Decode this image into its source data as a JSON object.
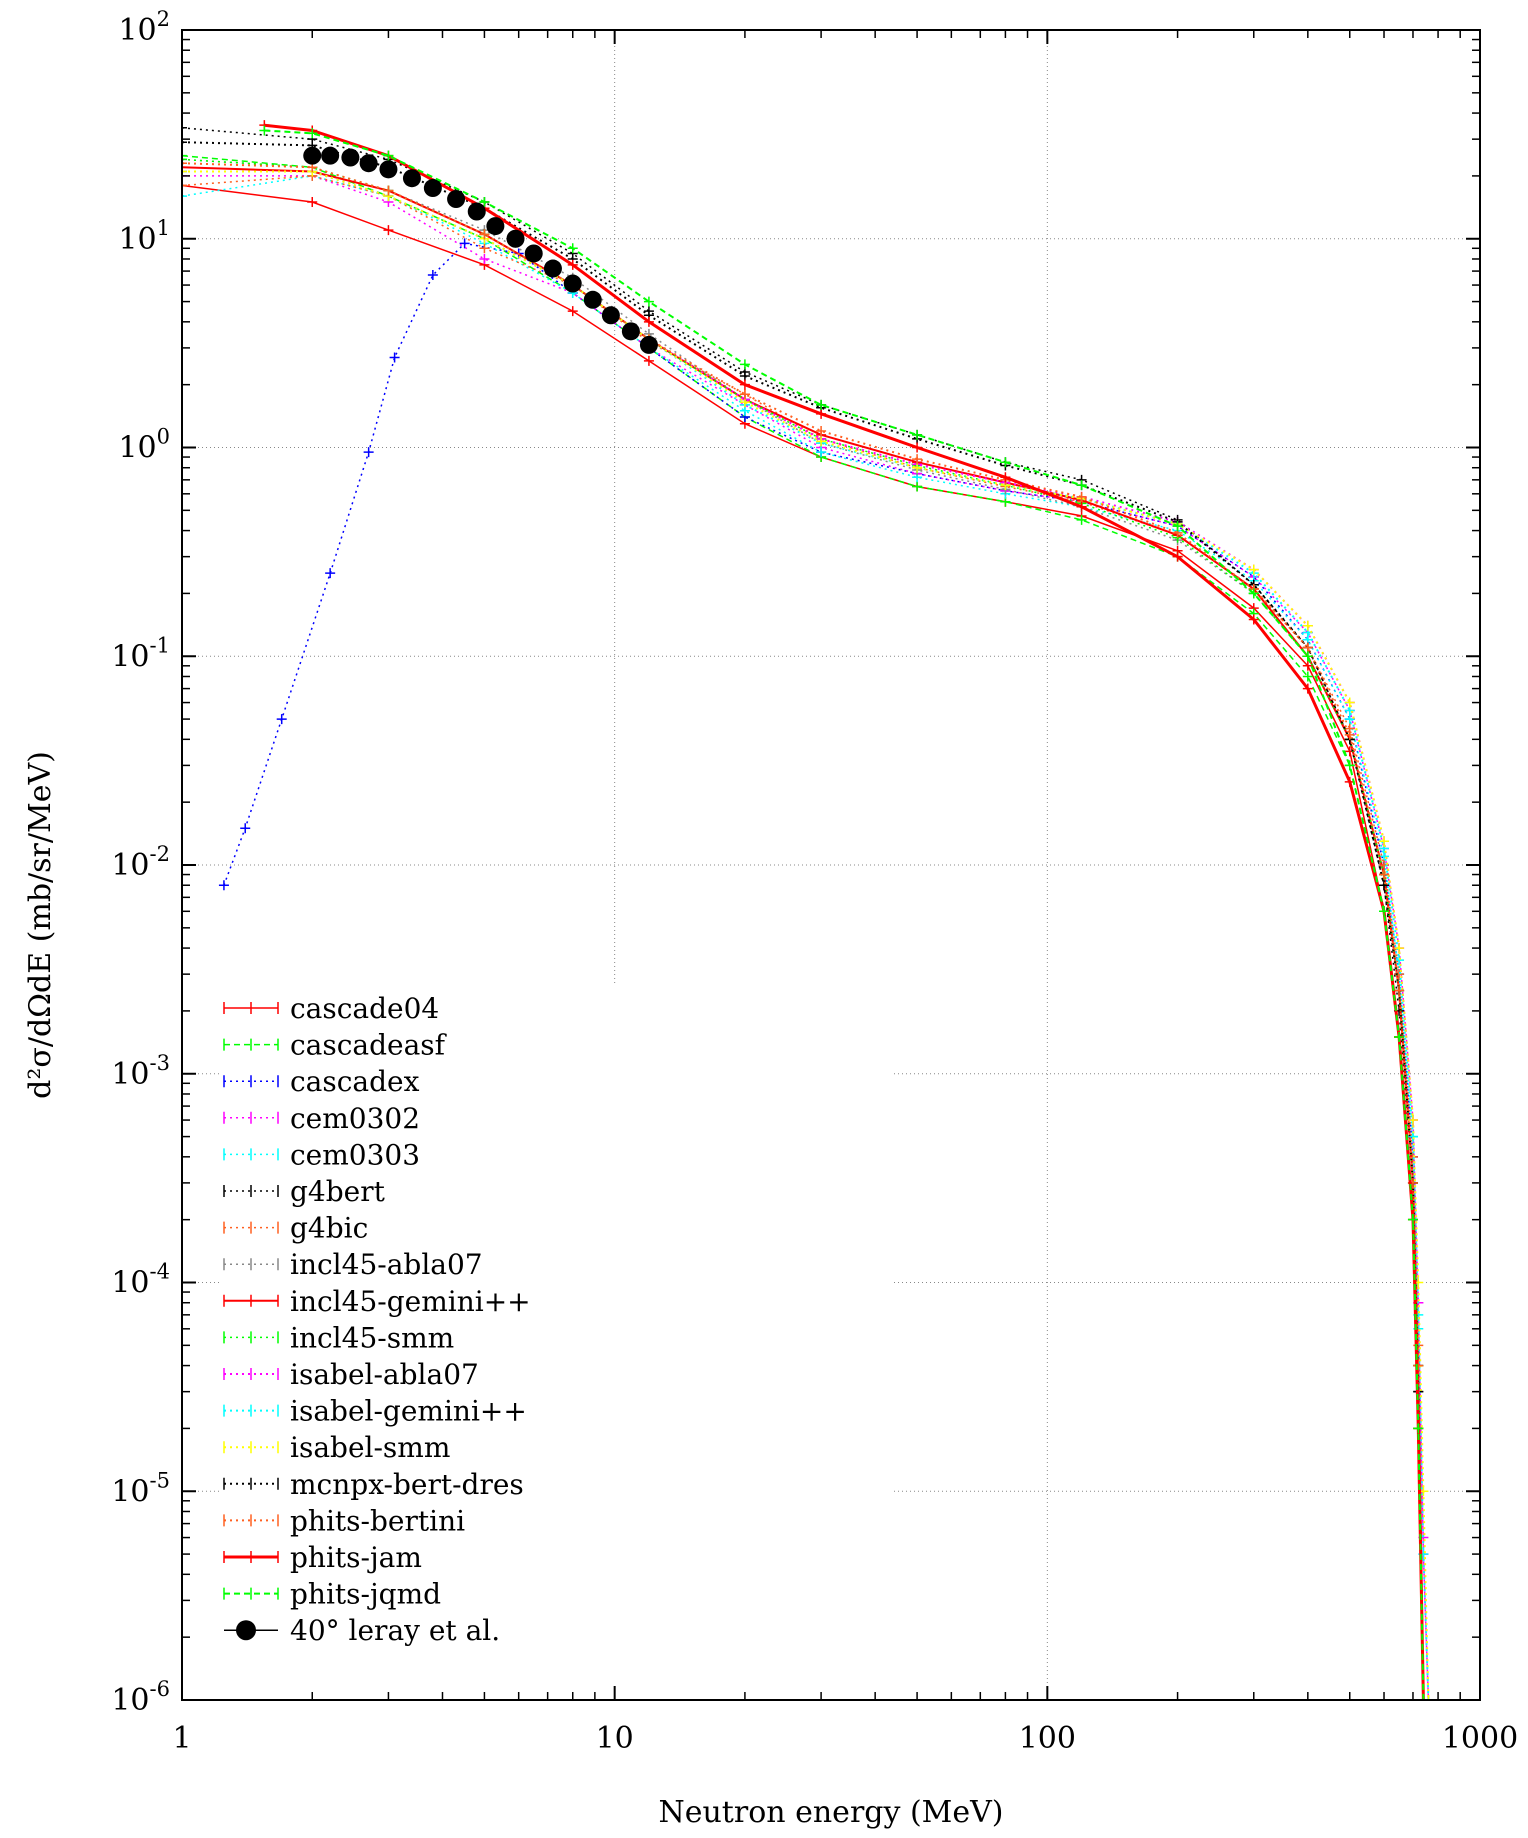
{
  "chart_data": {
    "type": "line",
    "title": "",
    "xlabel": "Neutron energy (MeV)",
    "ylabel": "d²σ/dΩdE (mb/sr/MeV)",
    "x_scale": "log",
    "y_scale": "log",
    "xlim": [
      1,
      1000
    ],
    "ylim": [
      1e-06,
      100
    ],
    "grid": true,
    "legend_position": "bottom-left",
    "x_ticks": [
      {
        "value": 1,
        "label": "1"
      },
      {
        "value": 10,
        "label": "10"
      },
      {
        "value": 100,
        "label": "100"
      },
      {
        "value": 1000,
        "label": "1000"
      }
    ],
    "y_ticks": [
      {
        "value": 1e-06,
        "mant": "10",
        "exp": "-6"
      },
      {
        "value": 1e-05,
        "mant": "10",
        "exp": "-5"
      },
      {
        "value": 0.0001,
        "mant": "10",
        "exp": "-4"
      },
      {
        "value": 0.001,
        "mant": "10",
        "exp": "-3"
      },
      {
        "value": 0.01,
        "mant": "10",
        "exp": "-2"
      },
      {
        "value": 0.1,
        "mant": "10",
        "exp": "-1"
      },
      {
        "value": 1,
        "mant": "10",
        "exp": "0"
      },
      {
        "value": 10,
        "mant": "10",
        "exp": "1"
      },
      {
        "value": 100,
        "mant": "10",
        "exp": "2"
      }
    ],
    "series": [
      {
        "name": "cascade04",
        "color": "#ff0000",
        "dash": "",
        "marker": "cross",
        "x": [
          1,
          2,
          3,
          5,
          8,
          12,
          20,
          30,
          50,
          80,
          120,
          200,
          300,
          400,
          500,
          600,
          650,
          700,
          720,
          740
        ],
        "y": [
          18,
          15,
          11,
          7.5,
          4.5,
          2.6,
          1.3,
          0.9,
          0.65,
          0.55,
          0.47,
          0.32,
          0.17,
          0.09,
          0.035,
          0.006,
          0.0015,
          0.0002,
          2e-05,
          1e-06
        ]
      },
      {
        "name": "cascadeasf",
        "color": "#00ff00",
        "dash": "6,4",
        "marker": "cross",
        "x": [
          1,
          2,
          3,
          5,
          8,
          12,
          20,
          30,
          50,
          80,
          120,
          200,
          300,
          400,
          500,
          600,
          650,
          700,
          720,
          740
        ],
        "y": [
          25,
          22,
          16,
          10,
          5.5,
          3,
          1.4,
          0.9,
          0.65,
          0.55,
          0.45,
          0.3,
          0.16,
          0.08,
          0.03,
          0.006,
          0.0015,
          0.0002,
          2e-05,
          1e-06
        ]
      },
      {
        "name": "cascadex",
        "color": "#0000ff",
        "dash": "2,4",
        "marker": "cross",
        "x": [
          1.25,
          1.4,
          1.7,
          2.2,
          2.7,
          3.1,
          3.8,
          4.5,
          6,
          8,
          12,
          20,
          30,
          50,
          80,
          120,
          200,
          300,
          400,
          500,
          600,
          650,
          700,
          720,
          740
        ],
        "y": [
          0.008,
          0.015,
          0.05,
          0.25,
          0.95,
          2.7,
          6.7,
          9.5,
          8.5,
          5.5,
          3,
          1.4,
          0.95,
          0.75,
          0.62,
          0.55,
          0.42,
          0.24,
          0.12,
          0.05,
          0.01,
          0.003,
          0.0004,
          4e-05,
          1e-06
        ]
      },
      {
        "name": "cem0302",
        "color": "#ff00ff",
        "dash": "2,4",
        "marker": "cross",
        "x": [
          1,
          2,
          3,
          5,
          8,
          12,
          20,
          30,
          50,
          80,
          120,
          200,
          300,
          400,
          500,
          600,
          650,
          700,
          720,
          740,
          760
        ],
        "y": [
          20,
          20,
          15,
          8,
          5.5,
          3,
          1.6,
          1,
          0.75,
          0.62,
          0.55,
          0.42,
          0.24,
          0.13,
          0.055,
          0.012,
          0.004,
          0.0006,
          8e-05,
          5e-06,
          1e-06
        ]
      },
      {
        "name": "cem0303",
        "color": "#00ffff",
        "dash": "2,4",
        "marker": "cross",
        "x": [
          1,
          2,
          3,
          5,
          8,
          12,
          20,
          30,
          50,
          80,
          120,
          200,
          300,
          400,
          500,
          600,
          650,
          700,
          720,
          740
        ],
        "y": [
          16,
          20,
          16,
          9.5,
          5.5,
          3,
          1.5,
          0.95,
          0.72,
          0.6,
          0.52,
          0.4,
          0.23,
          0.12,
          0.05,
          0.011,
          0.003,
          0.0005,
          6e-05,
          1e-06
        ]
      },
      {
        "name": "g4bert",
        "color": "#000000",
        "dash": "2,4",
        "marker": "cross",
        "x": [
          1,
          2,
          3,
          5,
          8,
          12,
          20,
          30,
          50,
          80,
          120,
          200,
          300,
          400,
          500,
          600,
          650,
          700,
          720,
          740
        ],
        "y": [
          34,
          30,
          24,
          15,
          8.5,
          4.5,
          2.3,
          1.6,
          1.15,
          0.85,
          0.7,
          0.45,
          0.22,
          0.11,
          0.04,
          0.008,
          0.002,
          0.0003,
          3e-05,
          1e-06
        ]
      },
      {
        "name": "g4bic",
        "color": "#ff6020",
        "dash": "2,4",
        "marker": "cross",
        "x": [
          1,
          2,
          3,
          5,
          8,
          12,
          20,
          30,
          50,
          80,
          120,
          200,
          300,
          400,
          500,
          600,
          650,
          700,
          720,
          740
        ],
        "y": [
          18,
          20,
          16,
          9,
          6,
          3.2,
          1.8,
          1.1,
          0.8,
          0.65,
          0.55,
          0.38,
          0.21,
          0.11,
          0.045,
          0.01,
          0.003,
          0.0004,
          5e-05,
          1e-06
        ]
      },
      {
        "name": "incl45-abla07",
        "color": "#888888",
        "dash": "2,4",
        "marker": "cross",
        "x": [
          1,
          2,
          3,
          5,
          8,
          12,
          20,
          30,
          50,
          80,
          120,
          200,
          300,
          400,
          500,
          600,
          650,
          700,
          720,
          740
        ],
        "y": [
          24,
          22,
          17,
          11,
          6.5,
          3.5,
          1.7,
          1.05,
          0.78,
          0.63,
          0.52,
          0.36,
          0.2,
          0.1,
          0.04,
          0.009,
          0.0025,
          0.0003,
          4e-05,
          1e-06
        ]
      },
      {
        "name": "incl45-gemini++",
        "color": "#ff0000",
        "dash": "",
        "marker": "cross",
        "width": 2,
        "x": [
          1,
          2,
          3,
          5,
          8,
          12,
          20,
          30,
          50,
          80,
          120,
          200,
          300,
          400,
          500,
          600,
          650,
          700,
          720,
          740
        ],
        "y": [
          22,
          21,
          17,
          10.5,
          6,
          3.3,
          1.7,
          1.15,
          0.85,
          0.68,
          0.56,
          0.38,
          0.21,
          0.1,
          0.04,
          0.009,
          0.0025,
          0.0003,
          4e-05,
          1e-06
        ]
      },
      {
        "name": "incl45-smm",
        "color": "#00ff00",
        "dash": "2,4",
        "marker": "cross",
        "x": [
          1,
          2,
          3,
          5,
          8,
          12,
          20,
          30,
          50,
          80,
          120,
          200,
          300,
          400,
          500,
          600,
          650,
          700,
          720,
          740
        ],
        "y": [
          24,
          22,
          17,
          10.5,
          6,
          3.3,
          1.7,
          1.1,
          0.82,
          0.66,
          0.54,
          0.37,
          0.2,
          0.1,
          0.04,
          0.009,
          0.0025,
          0.0003,
          4e-05,
          1e-06
        ]
      },
      {
        "name": "isabel-abla07",
        "color": "#ff00ff",
        "dash": "2,4",
        "marker": "cross",
        "width": 2,
        "x": [
          1,
          2,
          3,
          5,
          8,
          12,
          20,
          30,
          50,
          80,
          120,
          200,
          300,
          400,
          500,
          600,
          650,
          700,
          720,
          740,
          760
        ],
        "y": [
          21,
          21,
          16,
          10,
          6,
          3.3,
          1.7,
          1.1,
          0.83,
          0.68,
          0.58,
          0.44,
          0.26,
          0.14,
          0.06,
          0.013,
          0.004,
          0.0006,
          8e-05,
          6e-06,
          1e-06
        ]
      },
      {
        "name": "isabel-gemini++",
        "color": "#00ffff",
        "dash": "2,4",
        "marker": "cross",
        "width": 2,
        "x": [
          1,
          2,
          3,
          5,
          8,
          12,
          20,
          30,
          50,
          80,
          120,
          200,
          300,
          400,
          500,
          600,
          650,
          700,
          720,
          740,
          760
        ],
        "y": [
          21,
          21,
          16,
          10,
          6,
          3.3,
          1.6,
          1.05,
          0.8,
          0.66,
          0.57,
          0.43,
          0.25,
          0.13,
          0.055,
          0.012,
          0.0035,
          0.0005,
          7e-05,
          5e-06,
          1e-06
        ]
      },
      {
        "name": "isabel-smm",
        "color": "#ffff00",
        "dash": "2,4",
        "marker": "cross",
        "width": 2,
        "x": [
          1,
          2,
          3,
          5,
          8,
          12,
          20,
          30,
          50,
          80,
          120,
          200,
          300,
          400,
          500,
          600,
          650,
          700,
          720,
          740,
          760
        ],
        "y": [
          21,
          21,
          16,
          10,
          6,
          3.3,
          1.65,
          1.07,
          0.8,
          0.66,
          0.57,
          0.43,
          0.26,
          0.14,
          0.06,
          0.013,
          0.004,
          0.0006,
          0.0001,
          1e-05,
          1e-06
        ]
      },
      {
        "name": "mcnpx-bert-dres",
        "color": "#000000",
        "dash": "2,4",
        "marker": "cross",
        "width": 2,
        "x": [
          1,
          2,
          3,
          5,
          8,
          12,
          20,
          30,
          50,
          80,
          120,
          200,
          300,
          400,
          500,
          600,
          650,
          700,
          720,
          740
        ],
        "y": [
          29,
          28,
          22,
          14,
          8,
          4.3,
          2.2,
          1.55,
          1.1,
          0.82,
          0.66,
          0.44,
          0.22,
          0.11,
          0.04,
          0.008,
          0.0025,
          0.0003,
          3e-05,
          1e-06
        ]
      },
      {
        "name": "phits-bertini",
        "color": "#ff6020",
        "dash": "2,4",
        "marker": "cross",
        "width": 2,
        "x": [
          1,
          2,
          3,
          5,
          8,
          12,
          20,
          30,
          50,
          80,
          120,
          200,
          300,
          400,
          500,
          600,
          650,
          700,
          720,
          740
        ],
        "y": [
          23,
          22,
          17,
          10.5,
          6,
          3.3,
          1.8,
          1.2,
          0.88,
          0.7,
          0.58,
          0.39,
          0.21,
          0.11,
          0.042,
          0.009,
          0.0025,
          0.0003,
          4e-05,
          1e-06
        ]
      },
      {
        "name": "phits-jam",
        "color": "#ff0000",
        "dash": "",
        "marker": "cross",
        "width": 3,
        "x": [
          1.55,
          2,
          3,
          5,
          8,
          12,
          20,
          30,
          50,
          80,
          120,
          200,
          300,
          400,
          500,
          600,
          650,
          700,
          720,
          740
        ],
        "y": [
          35,
          33,
          25,
          14,
          7.5,
          4,
          2,
          1.45,
          1.0,
          0.72,
          0.52,
          0.3,
          0.15,
          0.07,
          0.025,
          0.006,
          0.0015,
          0.0002,
          2e-05,
          1e-06
        ]
      },
      {
        "name": "phits-jqmd",
        "color": "#00ff00",
        "dash": "6,4",
        "marker": "cross",
        "width": 2,
        "x": [
          1.55,
          2,
          3,
          5,
          8,
          12,
          20,
          30,
          50,
          80,
          120,
          200,
          300,
          400,
          500,
          600,
          650,
          700,
          720,
          740
        ],
        "y": [
          33,
          32,
          25,
          15,
          9,
          5,
          2.5,
          1.6,
          1.15,
          0.85,
          0.66,
          0.42,
          0.2,
          0.1,
          0.03,
          0.006,
          0.0015,
          0.0002,
          2e-05,
          1e-06
        ]
      },
      {
        "name": "40° leray et al.",
        "color": "#000000",
        "marker": "dot",
        "line": false,
        "x": [
          2.0,
          2.2,
          2.45,
          2.7,
          3.0,
          3.4,
          3.8,
          4.3,
          4.8,
          5.3,
          5.9,
          6.5,
          7.2,
          8.0,
          8.9,
          9.8,
          10.9,
          12.0
        ],
        "y": [
          25,
          25,
          24.5,
          23,
          21.5,
          19.5,
          17.5,
          15.5,
          13.5,
          11.5,
          10,
          8.5,
          7.2,
          6.1,
          5.1,
          4.3,
          3.6,
          3.1
        ]
      }
    ]
  }
}
